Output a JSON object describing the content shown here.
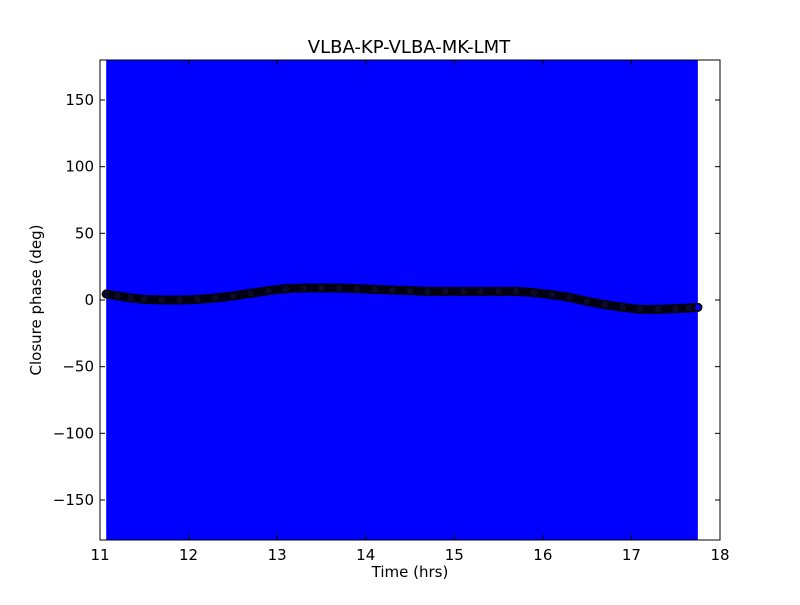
{
  "chart_data": {
    "type": "scatter",
    "title": "VLBA-KP-VLBA-MK-LMT",
    "xlabel": "Time (hrs)",
    "ylabel": "Closure phase (deg)",
    "xlim": [
      11,
      18
    ],
    "ylim": [
      -180,
      180
    ],
    "xticks": [
      11,
      12,
      13,
      14,
      15,
      16,
      17,
      18
    ],
    "yticks": [
      -150,
      -100,
      -50,
      0,
      50,
      100,
      150
    ],
    "grid": false,
    "series": [
      {
        "color": "#0000ff",
        "error_range": [
          -180,
          180
        ],
        "x_range": [
          11.07,
          17.75
        ],
        "points": [
          [
            11.07,
            4.5
          ],
          [
            11.2,
            3.0
          ],
          [
            11.35,
            1.5
          ],
          [
            11.5,
            0.5
          ],
          [
            11.7,
            0.0
          ],
          [
            11.9,
            0.0
          ],
          [
            12.1,
            0.5
          ],
          [
            12.3,
            1.5
          ],
          [
            12.5,
            3.0
          ],
          [
            12.7,
            5.0
          ],
          [
            12.9,
            7.0
          ],
          [
            13.1,
            8.5
          ],
          [
            13.3,
            9.0
          ],
          [
            13.5,
            9.0
          ],
          [
            13.7,
            9.0
          ],
          [
            13.9,
            8.5
          ],
          [
            14.1,
            8.0
          ],
          [
            14.3,
            7.5
          ],
          [
            14.5,
            7.0
          ],
          [
            14.7,
            6.5
          ],
          [
            14.9,
            6.5
          ],
          [
            15.1,
            6.5
          ],
          [
            15.3,
            6.5
          ],
          [
            15.5,
            6.5
          ],
          [
            15.7,
            6.5
          ],
          [
            15.9,
            5.5
          ],
          [
            16.1,
            4.0
          ],
          [
            16.3,
            2.0
          ],
          [
            16.5,
            -1.0
          ],
          [
            16.7,
            -3.5
          ],
          [
            16.9,
            -5.5
          ],
          [
            17.1,
            -7.0
          ],
          [
            17.3,
            -7.0
          ],
          [
            17.5,
            -6.5
          ],
          [
            17.65,
            -6.0
          ],
          [
            17.75,
            -5.5
          ]
        ]
      }
    ]
  }
}
